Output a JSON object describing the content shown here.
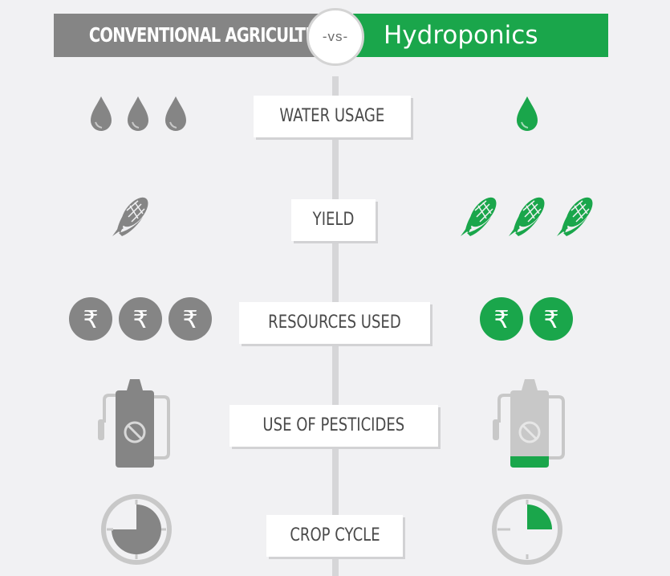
{
  "header": {
    "left_title": "CONVENTIONAL AGRICULTURE",
    "vs": "-vs-",
    "right_title": "Hydroponics"
  },
  "rows": [
    {
      "label": "WATER USAGE",
      "conventional": {
        "icon": "water-drop-icon",
        "count": 3
      },
      "hydroponics": {
        "icon": "water-drop-icon",
        "count": 1
      }
    },
    {
      "label": "YIELD",
      "conventional": {
        "icon": "corn-icon",
        "count": 1
      },
      "hydroponics": {
        "icon": "corn-icon",
        "count": 3
      }
    },
    {
      "label": "RESOURCES USED",
      "conventional": {
        "icon": "rupee-coin-icon",
        "count": 3
      },
      "hydroponics": {
        "icon": "rupee-coin-icon",
        "count": 2
      }
    },
    {
      "label": "USE OF PESTICIDES",
      "conventional": {
        "icon": "pesticide-sprayer-icon",
        "fill_level": 1.0
      },
      "hydroponics": {
        "icon": "pesticide-sprayer-icon",
        "fill_level": 0.1
      }
    },
    {
      "label": "CROP CYCLE",
      "conventional": {
        "icon": "clock-icon",
        "fraction": 0.75
      },
      "hydroponics": {
        "icon": "clock-icon",
        "fraction": 0.25
      }
    }
  ],
  "colors": {
    "conventional": "#858585",
    "hydroponics": "#1aa64b",
    "background": "#f1f1f3"
  }
}
